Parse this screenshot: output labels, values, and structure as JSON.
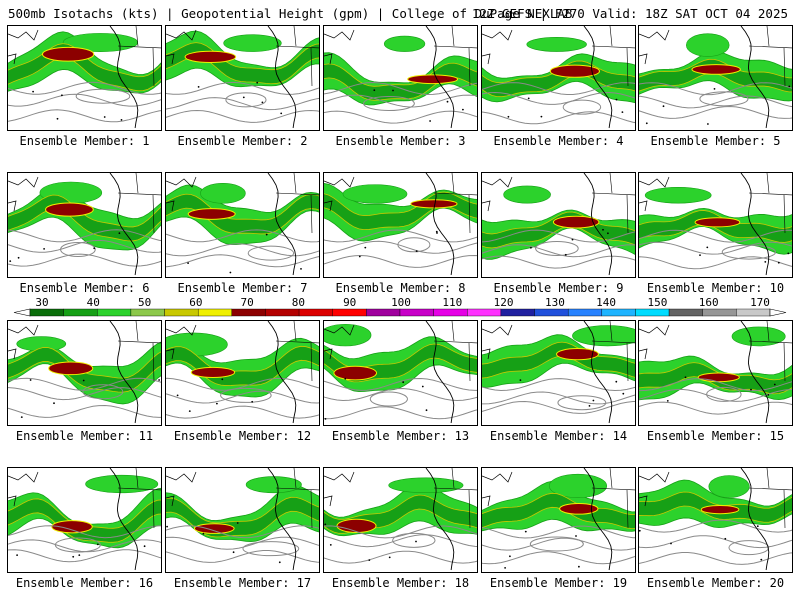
{
  "header": {
    "left_title": "500mb Isotachs (kts) | Geopotential Height (gpm) | College of DuPage NEXLAB",
    "right_title": "12Z GEFS | F270 Valid: 18Z SAT OCT 04 2025"
  },
  "colorbar": {
    "levels": [
      "30",
      "40",
      "50",
      "60",
      "70",
      "80",
      "90",
      "100",
      "110",
      "120",
      "130",
      "140",
      "150",
      "160",
      "170"
    ],
    "colors": [
      "#0a6e0a",
      "#16a016",
      "#2cd22c",
      "#8cc84a",
      "#c8c800",
      "#f0f000",
      "#8c0000",
      "#b40000",
      "#dc0000",
      "#ff0000",
      "#a0009e",
      "#c800c8",
      "#e600e6",
      "#ff32ff",
      "#2020a0",
      "#2050dc",
      "#2882ff",
      "#1eb4ff",
      "#00dcff",
      "#646464",
      "#969696",
      "#c8c8c8"
    ]
  },
  "members": [
    {
      "label": "Ensemble Member: 1"
    },
    {
      "label": "Ensemble Member: 2"
    },
    {
      "label": "Ensemble Member: 3"
    },
    {
      "label": "Ensemble Member: 4"
    },
    {
      "label": "Ensemble Member: 5"
    },
    {
      "label": "Ensemble Member: 6"
    },
    {
      "label": "Ensemble Member: 7"
    },
    {
      "label": "Ensemble Member: 8"
    },
    {
      "label": "Ensemble Member: 9"
    },
    {
      "label": "Ensemble Member: 10"
    },
    {
      "label": "Ensemble Member: 11"
    },
    {
      "label": "Ensemble Member: 12"
    },
    {
      "label": "Ensemble Member: 13"
    },
    {
      "label": "Ensemble Member: 14"
    },
    {
      "label": "Ensemble Member: 15"
    },
    {
      "label": "Ensemble Member: 16"
    },
    {
      "label": "Ensemble Member: 17"
    },
    {
      "label": "Ensemble Member: 18"
    },
    {
      "label": "Ensemble Member: 19"
    },
    {
      "label": "Ensemble Member: 20"
    }
  ]
}
